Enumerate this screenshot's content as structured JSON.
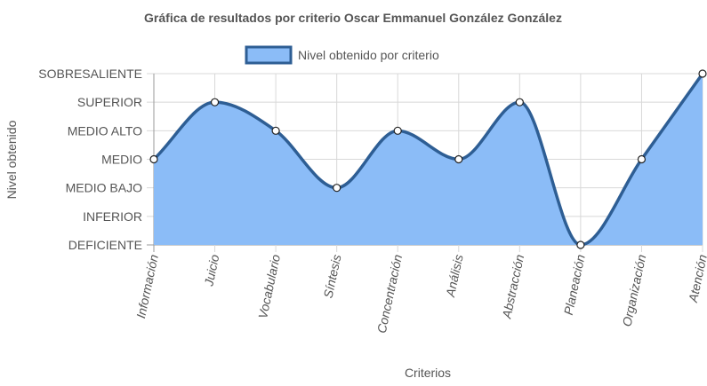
{
  "chart_data": {
    "type": "line",
    "title": "Gráfica de resultados por criterio Oscar Emmanuel González González",
    "xlabel": "Criterios",
    "ylabel": "Nivel obtenido",
    "categories": [
      "Información",
      "Juicio",
      "Vocabulario",
      "Síntesis",
      "Concentración",
      "Análisis",
      "Abstracción",
      "Planeación",
      "Organización",
      "Atención"
    ],
    "y_levels": [
      "DEFICIENTE",
      "INFERIOR",
      "MEDIO BAJO",
      "MEDIO",
      "MEDIO ALTO",
      "SUPERIOR",
      "SOBRESALIENTE"
    ],
    "ylim": [
      0,
      6
    ],
    "series": [
      {
        "name": "Nivel obtenido por criterio",
        "values": [
          3,
          5,
          4,
          2,
          4,
          3,
          5,
          0,
          3,
          6
        ],
        "value_labels": [
          "MEDIO",
          "SUPERIOR",
          "MEDIO ALTO",
          "MEDIO BAJO",
          "MEDIO ALTO",
          "MEDIO",
          "SUPERIOR",
          "DEFICIENTE",
          "MEDIO",
          "SOBRESALIENTE"
        ]
      }
    ],
    "fill": true,
    "smooth": true,
    "grid": true,
    "legend": "top",
    "colors": {
      "line": "#2e5e94",
      "fill": "#8bbcf7",
      "grid": "#d8d8d8",
      "point_fill": "#ffffff",
      "text": "#555555"
    }
  }
}
